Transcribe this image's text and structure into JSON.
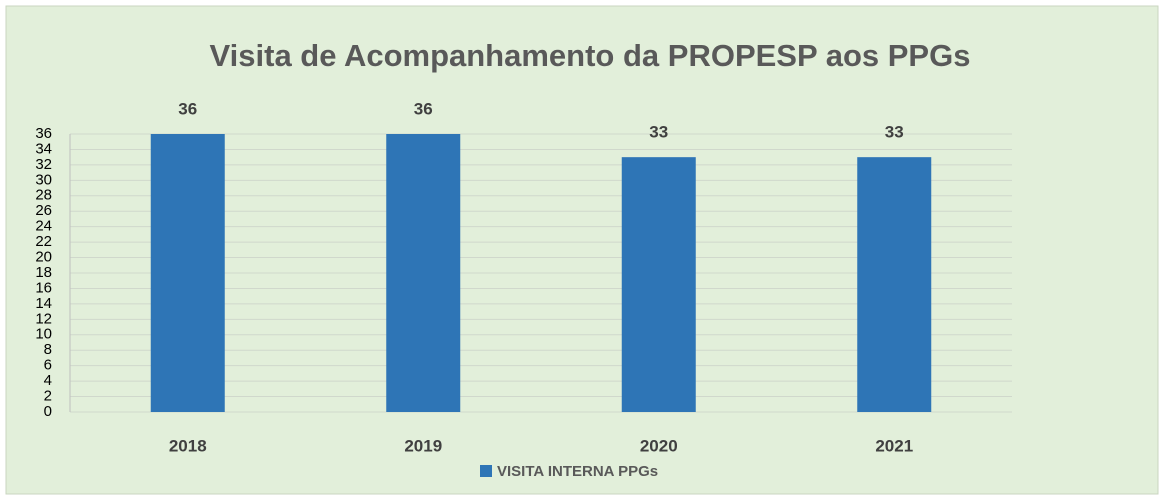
{
  "chart_data": {
    "type": "bar",
    "title": "Visita de Acompanhamento da PROPESP aos PPGs",
    "categories": [
      "2018",
      "2019",
      "2020",
      "2021"
    ],
    "series": [
      {
        "name": "VISITA INTERNA PPGs",
        "color": "#2e75b6",
        "values": [
          36,
          36,
          33,
          33
        ]
      }
    ],
    "ylim": [
      0,
      36
    ],
    "yticks": [
      0,
      2,
      4,
      6,
      8,
      10,
      12,
      14,
      16,
      18,
      20,
      22,
      24,
      26,
      28,
      30,
      32,
      34,
      36
    ],
    "grid": true,
    "legend": "bottom"
  }
}
